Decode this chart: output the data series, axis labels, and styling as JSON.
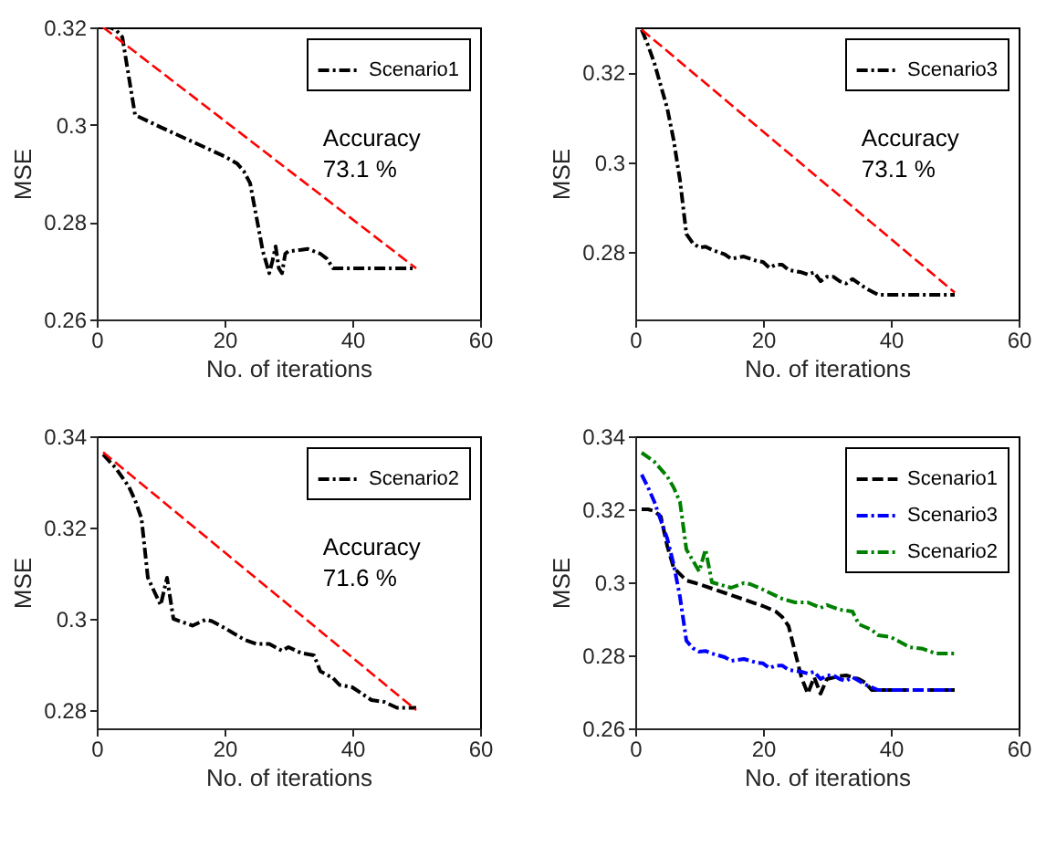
{
  "chart_data": [
    {
      "type": "line",
      "xlabel": "No. of iterations",
      "ylabel": "MSE",
      "xlim": [
        0,
        60
      ],
      "xticks": [
        0,
        20,
        40,
        60
      ],
      "ylim": [
        0.26,
        0.32
      ],
      "yticks": [
        0.26,
        0.28,
        0.3,
        0.32
      ],
      "grid": false,
      "legend": "top right",
      "annotations": [
        "Accuracy",
        "73.1 %"
      ],
      "series": [
        {
          "name": "Scenario1",
          "color": "#000000",
          "line_style": "dashdot",
          "x": [
            1,
            2,
            3,
            4,
            5,
            6,
            10,
            15,
            20,
            22,
            23,
            24,
            25,
            26,
            27,
            27.5,
            28,
            28.5,
            29,
            29.5,
            30,
            32,
            33,
            35,
            36,
            37,
            40,
            50
          ],
          "values": [
            0.32,
            0.32,
            0.3195,
            0.318,
            0.31,
            0.302,
            0.2995,
            0.2965,
            0.2935,
            0.292,
            0.2905,
            0.288,
            0.281,
            0.274,
            0.2695,
            0.272,
            0.275,
            0.2705,
            0.2695,
            0.2735,
            0.274,
            0.2743,
            0.2745,
            0.2735,
            0.2725,
            0.2705,
            0.2705,
            0.2705
          ]
        },
        {
          "color": "#ff0000",
          "line_style": "dashed",
          "x": [
            1,
            50
          ],
          "values": [
            0.32,
            0.2705
          ]
        }
      ]
    },
    {
      "type": "line",
      "xlabel": "No. of iterations",
      "ylabel": "MSE",
      "xlim": [
        0,
        60
      ],
      "xticks": [
        0,
        20,
        40,
        60
      ],
      "ylim": [
        0.265,
        0.33
      ],
      "yticks": [
        0.28,
        0.3,
        0.32
      ],
      "grid": false,
      "legend": "top right",
      "annotations": [
        "Accuracy",
        "73.1 %"
      ],
      "series": [
        {
          "name": "Scenario3",
          "color": "#000000",
          "line_style": "dashdot",
          "x": [
            1,
            2,
            3,
            4,
            5,
            6,
            7,
            8,
            9,
            10,
            11,
            12,
            14,
            15,
            17,
            19,
            20,
            21,
            22,
            23,
            24,
            26,
            27,
            28,
            29,
            30,
            31,
            32,
            33,
            34,
            36,
            38,
            40,
            50
          ],
          "values": [
            0.3295,
            0.326,
            0.322,
            0.317,
            0.312,
            0.305,
            0.296,
            0.284,
            0.282,
            0.281,
            0.2812,
            0.2805,
            0.2795,
            0.2785,
            0.279,
            0.278,
            0.2778,
            0.2765,
            0.2772,
            0.2772,
            0.276,
            0.2755,
            0.275,
            0.2755,
            0.2735,
            0.2745,
            0.2745,
            0.2735,
            0.273,
            0.274,
            0.272,
            0.2705,
            0.2705,
            0.2705
          ]
        },
        {
          "color": "#ff0000",
          "line_style": "dashed",
          "x": [
            1,
            50
          ],
          "values": [
            0.3295,
            0.271
          ]
        }
      ]
    },
    {
      "type": "line",
      "xlabel": "No. of iterations",
      "ylabel": "MSE",
      "xlim": [
        0,
        60
      ],
      "xticks": [
        0,
        20,
        40,
        60
      ],
      "ylim": [
        0.276,
        0.34
      ],
      "yticks": [
        0.28,
        0.3,
        0.32,
        0.34
      ],
      "grid": false,
      "legend": "top right",
      "annotations": [
        "Accuracy",
        "71.6 %"
      ],
      "series": [
        {
          "name": "Scenario2",
          "color": "#000000",
          "line_style": "dashdot",
          "x": [
            1,
            3,
            5,
            6,
            7,
            8,
            9,
            10,
            11,
            12,
            15,
            17,
            18,
            20,
            23,
            25,
            27,
            29,
            30,
            32,
            34,
            35,
            37,
            38,
            40,
            43,
            45,
            47,
            50
          ],
          "values": [
            0.336,
            0.333,
            0.329,
            0.326,
            0.322,
            0.309,
            0.306,
            0.303,
            0.309,
            0.3,
            0.2985,
            0.2998,
            0.2995,
            0.298,
            0.2955,
            0.2945,
            0.2945,
            0.293,
            0.2938,
            0.2925,
            0.292,
            0.2885,
            0.287,
            0.2855,
            0.285,
            0.2822,
            0.2818,
            0.2805,
            0.2805
          ]
        },
        {
          "color": "#ff0000",
          "line_style": "dashed",
          "x": [
            1,
            50
          ],
          "values": [
            0.3365,
            0.28
          ]
        }
      ]
    },
    {
      "type": "line",
      "xlabel": "No. of iterations",
      "ylabel": "MSE",
      "xlim": [
        0,
        60
      ],
      "xticks": [
        0,
        20,
        40,
        60
      ],
      "ylim": [
        0.26,
        0.34
      ],
      "yticks": [
        0.26,
        0.28,
        0.3,
        0.32,
        0.34
      ],
      "grid": false,
      "legend": "top right",
      "series": [
        {
          "name": "Scenario1",
          "color": "#000000",
          "line_style": "dashed",
          "x": [
            1,
            2,
            3,
            4,
            5,
            6,
            8,
            10,
            15,
            20,
            22,
            23,
            24,
            25,
            26,
            27,
            28,
            29,
            30,
            32,
            33,
            35,
            36,
            37,
            40,
            50
          ],
          "values": [
            0.32,
            0.32,
            0.3195,
            0.318,
            0.31,
            0.304,
            0.3005,
            0.2995,
            0.2965,
            0.2935,
            0.292,
            0.2905,
            0.288,
            0.281,
            0.274,
            0.2695,
            0.274,
            0.2695,
            0.2735,
            0.2743,
            0.2745,
            0.2735,
            0.2725,
            0.2705,
            0.2705,
            0.2705
          ]
        },
        {
          "name": "Scenario3",
          "color": "#0000ff",
          "line_style": "dashdot",
          "x": [
            1,
            2,
            3,
            4,
            5,
            6,
            7,
            8,
            9,
            10,
            11,
            12,
            14,
            15,
            17,
            19,
            20,
            21,
            22,
            23,
            24,
            26,
            27,
            28,
            29,
            30,
            31,
            32,
            33,
            34,
            36,
            38,
            40,
            50
          ],
          "values": [
            0.3295,
            0.326,
            0.322,
            0.317,
            0.312,
            0.305,
            0.296,
            0.284,
            0.282,
            0.281,
            0.2812,
            0.2805,
            0.2795,
            0.2785,
            0.279,
            0.278,
            0.2778,
            0.2765,
            0.2772,
            0.2772,
            0.276,
            0.2755,
            0.275,
            0.2755,
            0.2735,
            0.2745,
            0.2745,
            0.2735,
            0.273,
            0.274,
            0.272,
            0.2705,
            0.2705,
            0.2705
          ]
        },
        {
          "name": "Scenario2",
          "color": "#008000",
          "line_style": "dashdot",
          "x": [
            1,
            3,
            5,
            6,
            7,
            8,
            9,
            10,
            11,
            12,
            15,
            17,
            18,
            20,
            23,
            25,
            27,
            29,
            30,
            32,
            34,
            35,
            37,
            38,
            40,
            43,
            45,
            47,
            50
          ],
          "values": [
            0.3355,
            0.333,
            0.329,
            0.326,
            0.322,
            0.309,
            0.306,
            0.303,
            0.309,
            0.3,
            0.2985,
            0.2998,
            0.2995,
            0.298,
            0.2955,
            0.2945,
            0.2945,
            0.293,
            0.2938,
            0.2925,
            0.292,
            0.2885,
            0.287,
            0.2855,
            0.285,
            0.2822,
            0.2818,
            0.2805,
            0.2805
          ]
        }
      ]
    }
  ]
}
